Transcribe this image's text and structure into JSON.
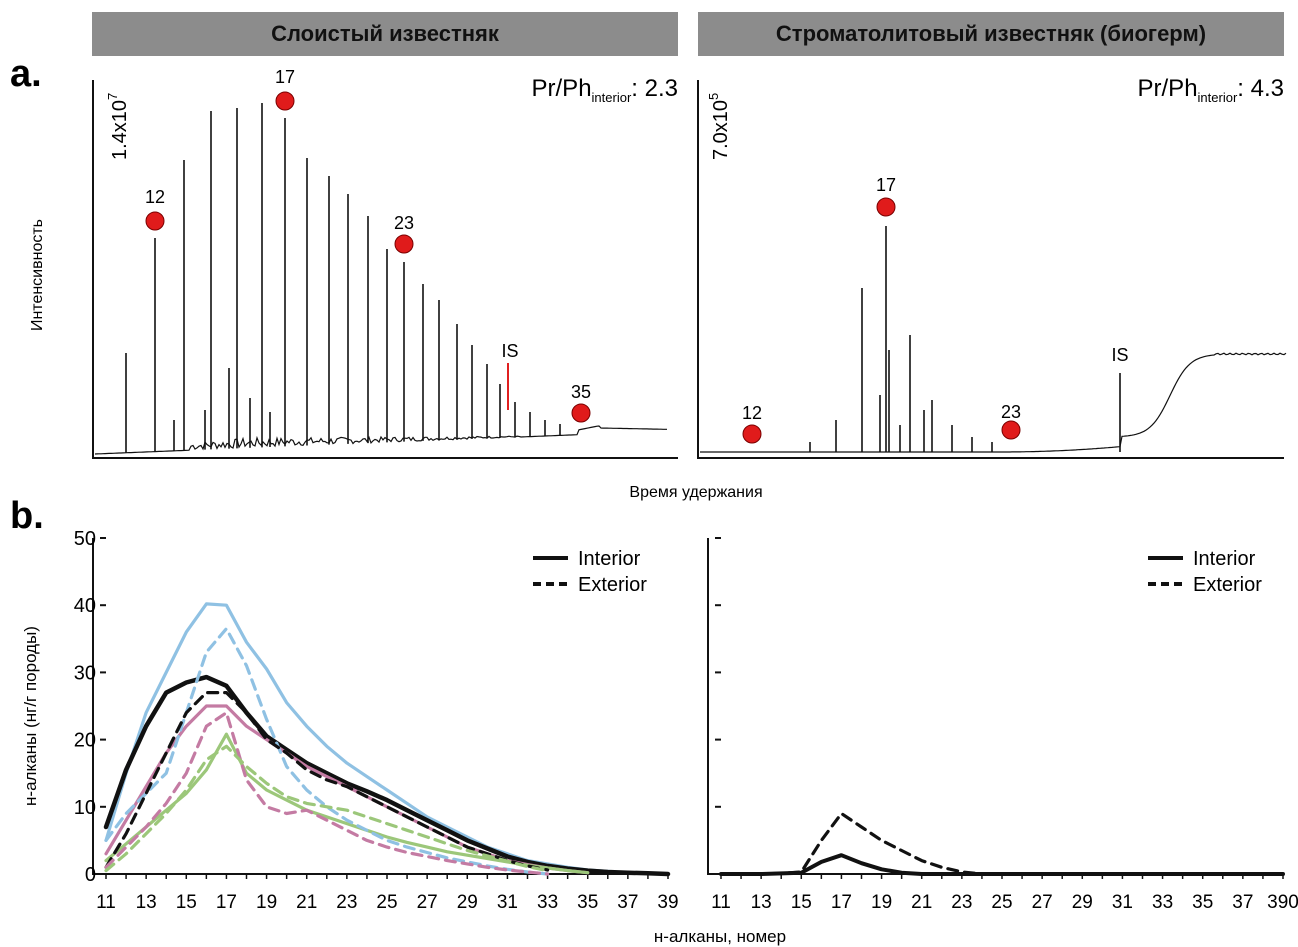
{
  "headers": {
    "left": "Слоистый известняк",
    "right": "Строматолитовый известняк (биогерм)"
  },
  "panel_labels": {
    "a": "a.",
    "b": "b."
  },
  "colors": {
    "black": "#111111",
    "blue": "#8fc1e3",
    "pink": "#c47ba3",
    "green": "#9cc77a",
    "marker": "#e01b1b",
    "is_line_left": "#e02020"
  },
  "chromatogram": {
    "ylabel": "Интенсивность",
    "xlabel": "Время удержания",
    "left": {
      "scale_mantissa": "1.4x10",
      "scale_exp": "7",
      "ratio_label_main": "Pr/Ph",
      "ratio_label_sub": "interior",
      "ratio_value": ": 2.3",
      "markers": [
        "12",
        "17",
        "23",
        "35"
      ],
      "is_label": "IS"
    },
    "right": {
      "scale_mantissa": "7.0x10",
      "scale_exp": "5",
      "ratio_label_main": "Pr/Ph",
      "ratio_label_sub": "interior",
      "ratio_value": ": 4.3",
      "markers": [
        "12",
        "17",
        "23"
      ],
      "is_label": "IS"
    }
  },
  "chart_data": [
    {
      "type": "line",
      "panel": "b-left",
      "ylabel": "н-алканы (нг/г породы)",
      "xlabel": "н-алканы, номер",
      "ylim": [
        0,
        50
      ],
      "xlim": [
        11,
        39
      ],
      "yticks": [
        0,
        10,
        20,
        30,
        40,
        50
      ],
      "xticks": [
        11,
        13,
        15,
        17,
        19,
        21,
        23,
        25,
        27,
        29,
        31,
        33,
        35,
        37,
        39
      ],
      "legend": [
        {
          "name": "Interior",
          "style": "solid"
        },
        {
          "name": "Exterior",
          "style": "dashed"
        }
      ],
      "legend_position": "top-right",
      "series": [
        {
          "color": "#8fc1e3",
          "style": "solid",
          "x": [
            11,
            12,
            13,
            14,
            15,
            16,
            17,
            18,
            19,
            20,
            21,
            22,
            23,
            24,
            25,
            26,
            27,
            28,
            29,
            30,
            31,
            32,
            33,
            34,
            35,
            36,
            37,
            38,
            39
          ],
          "y": [
            5,
            15,
            24,
            30,
            36,
            40.2,
            40,
            34.5,
            30.5,
            25.5,
            22,
            19,
            16.5,
            14.5,
            12.5,
            10.5,
            8.5,
            7,
            5.5,
            4,
            3,
            2,
            1.5,
            1,
            0.6,
            0.4,
            0.2,
            0.1,
            0
          ]
        },
        {
          "color": "#111111",
          "style": "solid",
          "width": 4.5,
          "x": [
            11,
            12,
            13,
            14,
            15,
            16,
            17,
            18,
            19,
            20,
            21,
            22,
            23,
            24,
            25,
            26,
            27,
            28,
            29,
            30,
            31,
            32,
            33,
            34,
            35,
            36,
            37,
            38,
            39
          ],
          "y": [
            7,
            15.5,
            22,
            27,
            28.5,
            29.3,
            28,
            24,
            20.5,
            18.5,
            16.5,
            15,
            13.5,
            12.3,
            11,
            9.5,
            8,
            6.5,
            5,
            3.8,
            2.6,
            1.8,
            1.2,
            0.8,
            0.5,
            0.3,
            0.2,
            0.1,
            0
          ]
        },
        {
          "color": "#c47ba3",
          "style": "solid",
          "x": [
            11,
            12,
            13,
            14,
            15,
            16,
            17,
            18,
            19,
            20,
            21,
            22,
            23,
            24,
            25,
            26,
            27,
            28,
            29,
            30,
            31,
            32,
            33,
            34,
            35
          ],
          "y": [
            3,
            8,
            13,
            18,
            22,
            25,
            25,
            22,
            20,
            18,
            16,
            14.5,
            13,
            11.5,
            10,
            8.5,
            7,
            5.5,
            4,
            3,
            2,
            1.4,
            0.9,
            0.5,
            0.2
          ]
        },
        {
          "color": "#9cc77a",
          "style": "solid",
          "x": [
            11,
            12,
            13,
            14,
            15,
            16,
            17,
            18,
            19,
            20,
            21,
            22,
            23,
            24,
            25,
            26,
            27,
            28,
            29,
            30,
            31,
            32,
            33,
            34,
            35
          ],
          "y": [
            2,
            4.5,
            7,
            9.5,
            12,
            15.5,
            20.8,
            15,
            12.5,
            11,
            9.5,
            8.5,
            7.5,
            6.5,
            5.5,
            4.7,
            4,
            3.3,
            2.8,
            2.3,
            1.8,
            1.3,
            0.9,
            0.5,
            0.2
          ]
        },
        {
          "color": "#8fc1e3",
          "style": "dashed",
          "x": [
            11,
            12,
            13,
            14,
            15,
            16,
            17,
            18,
            19,
            20,
            21,
            22,
            23,
            24,
            25,
            26,
            27,
            28,
            29,
            30,
            31,
            32,
            33
          ],
          "y": [
            5,
            9,
            12,
            15,
            24,
            33,
            36.5,
            31,
            23,
            16,
            12.5,
            10,
            8,
            6.5,
            5,
            4,
            3.2,
            2.4,
            1.8,
            1.2,
            0.7,
            0.3,
            0
          ]
        },
        {
          "color": "#111111",
          "style": "dashed",
          "x": [
            11,
            12,
            13,
            14,
            15,
            16,
            17,
            18,
            19,
            20,
            21,
            22,
            23,
            24,
            25,
            26,
            27,
            28,
            29,
            30,
            31,
            32,
            33
          ],
          "y": [
            1,
            6,
            12,
            18,
            24,
            27,
            27,
            24,
            20,
            18,
            15.5,
            14,
            13,
            11.5,
            10,
            8.5,
            7,
            5.5,
            4,
            3,
            2,
            1.2,
            0.6
          ]
        },
        {
          "color": "#c47ba3",
          "style": "dashed",
          "x": [
            11,
            12,
            13,
            14,
            15,
            16,
            17,
            18,
            19,
            20,
            21,
            22,
            23,
            24,
            25,
            26,
            27,
            28,
            29,
            30,
            31,
            32,
            33
          ],
          "y": [
            1,
            4,
            7,
            10.5,
            15,
            22,
            24,
            14,
            10,
            9,
            9.5,
            8,
            6.5,
            5,
            4,
            3.2,
            2.6,
            2,
            1.5,
            1,
            0.6,
            0.3,
            0
          ]
        },
        {
          "color": "#9cc77a",
          "style": "dashed",
          "x": [
            11,
            12,
            13,
            14,
            15,
            16,
            17,
            18,
            19,
            20,
            21,
            22,
            23,
            24,
            25,
            26,
            27,
            28,
            29,
            30,
            31,
            32,
            33
          ],
          "y": [
            0.5,
            3,
            6,
            9,
            12.5,
            17,
            19,
            16,
            13.5,
            11.5,
            10.5,
            10,
            9.5,
            8.5,
            7.5,
            6.5,
            5.5,
            4.5,
            3.5,
            2.7,
            1.9,
            1.1,
            0.5
          ]
        }
      ]
    },
    {
      "type": "line",
      "panel": "b-right",
      "ylim": [
        0,
        50
      ],
      "xlim": [
        11,
        39
      ],
      "xticks": [
        11,
        13,
        15,
        17,
        19,
        21,
        23,
        25,
        27,
        29,
        31,
        33,
        35,
        37,
        39
      ],
      "last_xtick_label": "390",
      "legend": [
        {
          "name": "Interior",
          "style": "solid"
        },
        {
          "name": "Exterior",
          "style": "dashed"
        }
      ],
      "legend_position": "top-right",
      "series": [
        {
          "color": "#111111",
          "style": "dashed",
          "x": [
            11,
            13,
            14,
            15,
            16,
            17,
            18,
            19,
            20,
            21,
            22,
            23,
            24,
            39
          ],
          "y": [
            0,
            0,
            0.1,
            0.3,
            5,
            9,
            7,
            5,
            3.5,
            2,
            1,
            0.3,
            0,
            0
          ]
        },
        {
          "color": "#111111",
          "style": "solid",
          "width": 4,
          "x": [
            11,
            13,
            15,
            16,
            17,
            18,
            19,
            20,
            21,
            22,
            39
          ],
          "y": [
            0,
            0,
            0.2,
            1.8,
            2.8,
            1.6,
            0.7,
            0.2,
            0,
            0,
            0
          ]
        }
      ]
    }
  ]
}
